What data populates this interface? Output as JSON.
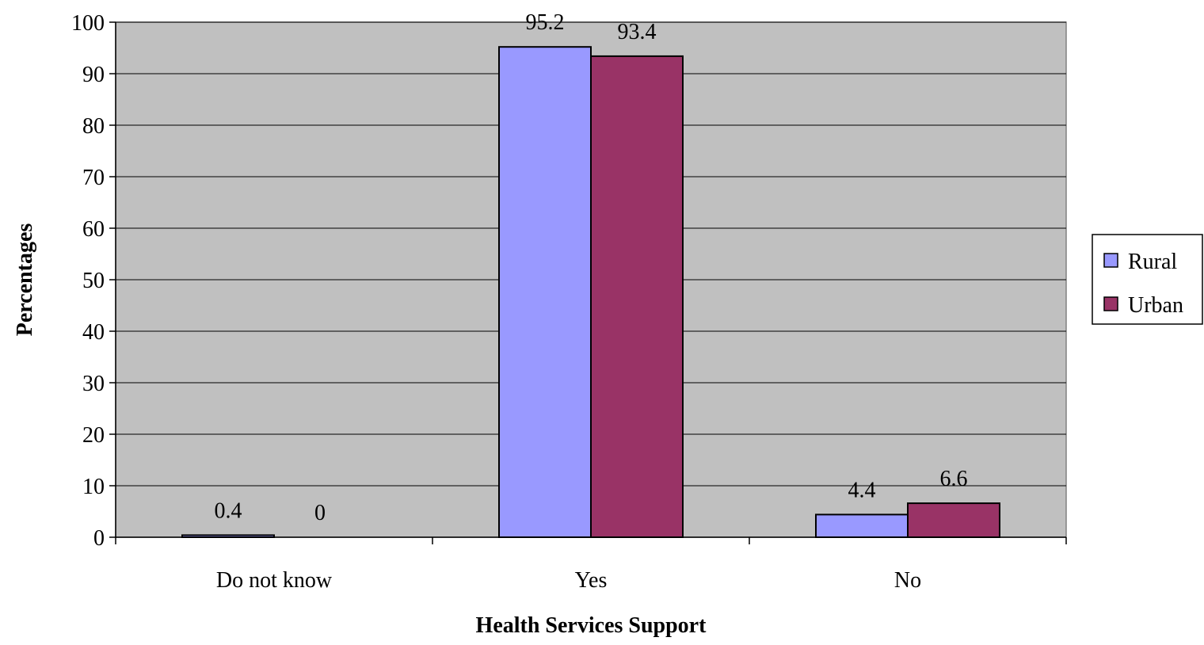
{
  "chart_data": {
    "type": "bar",
    "title": "",
    "xlabel": "Health Services Support",
    "ylabel": "Percentages",
    "categories": [
      "Do not know",
      "Yes",
      "No"
    ],
    "series": [
      {
        "name": "Rural",
        "values": [
          0.4,
          95.2,
          4.4
        ],
        "labels": [
          "0.4",
          "95.2",
          "4.4"
        ],
        "color": "#9999FF"
      },
      {
        "name": "Urban",
        "values": [
          0,
          93.4,
          6.6
        ],
        "labels": [
          "0",
          "93.4",
          "6.6"
        ],
        "color": "#993366"
      }
    ],
    "ylim": [
      0,
      100
    ],
    "yticks": [
      "0",
      "10",
      "20",
      "30",
      "40",
      "50",
      "60",
      "70",
      "80",
      "90",
      "100"
    ],
    "grid": true,
    "plot_background": "#C0C0C0",
    "legend_position": "right"
  }
}
